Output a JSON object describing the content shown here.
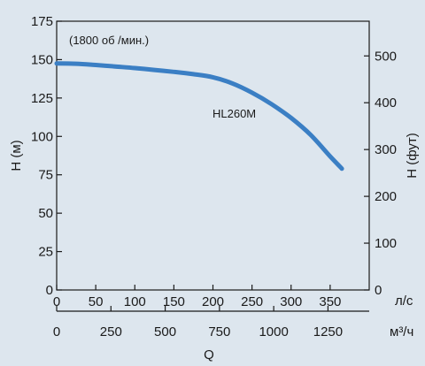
{
  "chart_data": {
    "type": "line",
    "title": "",
    "annotation": "(1800 об /мин.)",
    "series": [
      {
        "name": "HL260M",
        "color": "#3b7fc4",
        "x_ls": [
          0,
          25,
          50,
          75,
          100,
          125,
          150,
          175,
          200,
          225,
          250,
          275,
          300,
          325,
          350,
          365
        ],
        "y_m": [
          147.5,
          147.3,
          146.5,
          145.5,
          144.5,
          143.3,
          142,
          140.5,
          138.5,
          134.5,
          128.5,
          121,
          112,
          101,
          87,
          79
        ]
      }
    ],
    "y_left": {
      "label": "H (м)",
      "range": [
        0,
        175
      ],
      "ticks": [
        "0",
        "25",
        "50",
        "75",
        "100",
        "125",
        "150",
        "175"
      ]
    },
    "y_right": {
      "label": "H (фут)",
      "ticks": [
        "0",
        "100",
        "200",
        "300",
        "400",
        "500"
      ]
    },
    "x_top": {
      "unit": "л/с",
      "range": [
        0,
        400
      ],
      "ticks": [
        "0",
        "50",
        "100",
        "150",
        "200",
        "250",
        "300",
        "350"
      ]
    },
    "x_bottom": {
      "unit": "м³/ч",
      "ticks": [
        "0",
        "250",
        "500",
        "750",
        "1000",
        "1250"
      ]
    },
    "xlabel": "Q",
    "grid": false
  }
}
